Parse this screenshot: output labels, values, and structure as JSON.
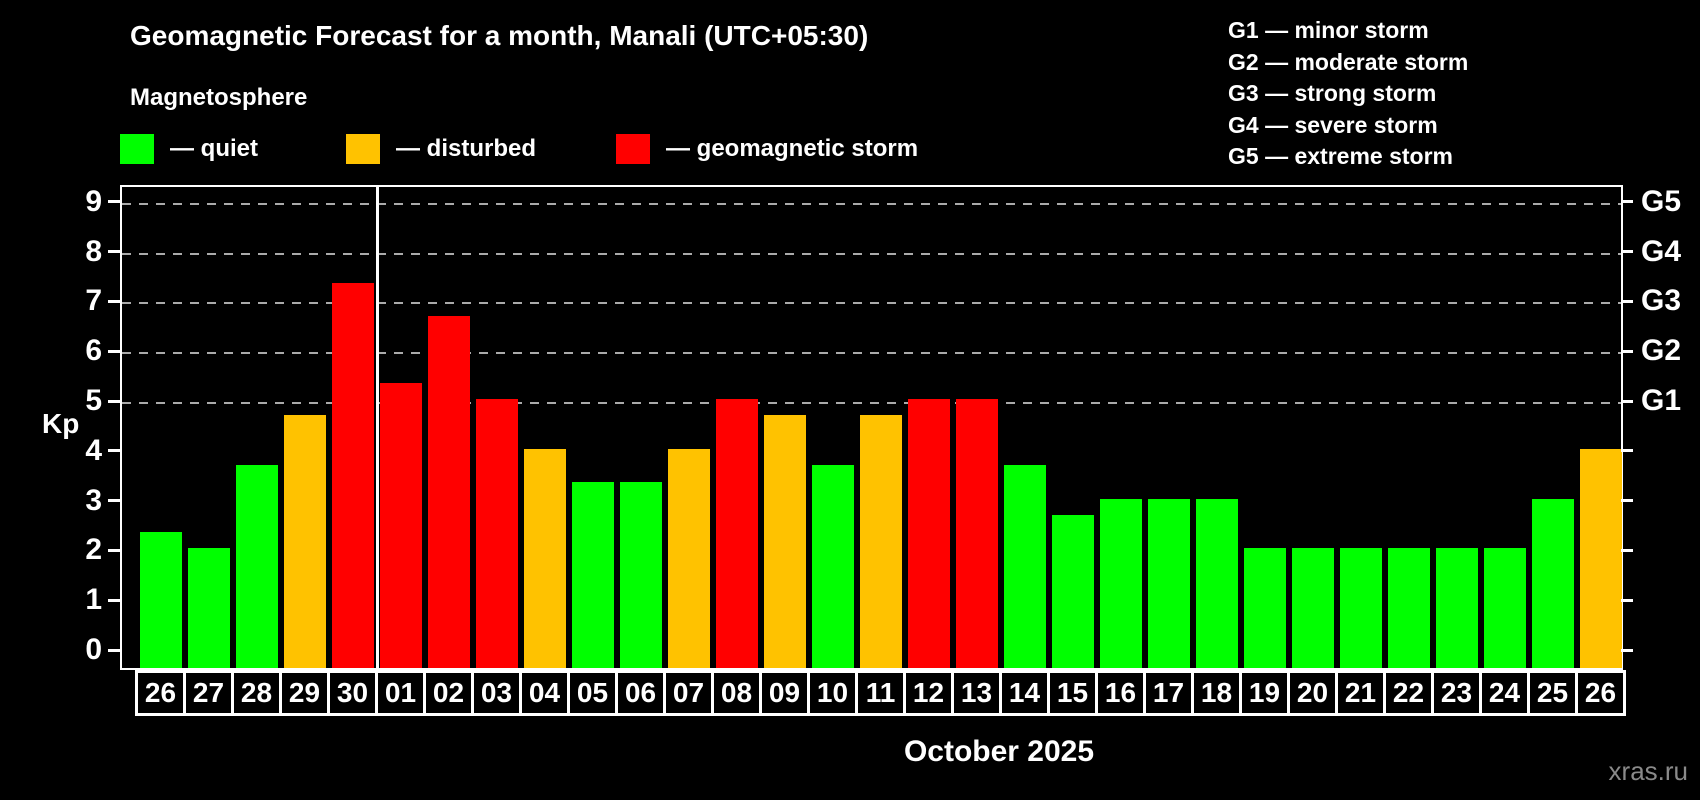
{
  "title": "Geomagnetic Forecast for a month, Manali (UTC+05:30)",
  "subtitle": "Magnetosphere",
  "legend": [
    {
      "label": "— quiet",
      "status": "quiet"
    },
    {
      "label": "— disturbed",
      "status": "disturbed"
    },
    {
      "label": "— geomagnetic storm",
      "status": "storm"
    }
  ],
  "status_colors": {
    "quiet": "#00ff00",
    "disturbed": "#ffc200",
    "storm": "#ff0000"
  },
  "g_legend": [
    "G1 — minor storm",
    "G2 — moderate storm",
    "G3 — strong storm",
    "G4 — severe storm",
    "G5 — extreme storm"
  ],
  "y_axis": {
    "label": "Kp",
    "ticks": [
      0,
      1,
      2,
      3,
      4,
      5,
      6,
      7,
      8,
      9
    ]
  },
  "x_axis": {
    "label": "October 2025"
  },
  "watermark": "xras.ru",
  "chart_data": {
    "type": "bar",
    "title": "Geomagnetic Forecast for a month, Manali (UTC+05:30)",
    "xlabel": "October 2025",
    "ylabel": "Kp",
    "ylim": [
      0,
      9
    ],
    "grid": "dashed horizontal lines at Kp 5-9 only",
    "gridlines_kp": [
      5,
      6,
      7,
      8,
      9
    ],
    "right_axis_labels": {
      "5": "G1",
      "6": "G2",
      "7": "G3",
      "8": "G4",
      "9": "G5"
    },
    "month_separator_after_index": 4,
    "categories": [
      "26",
      "27",
      "28",
      "29",
      "30",
      "01",
      "02",
      "03",
      "04",
      "05",
      "06",
      "07",
      "08",
      "09",
      "10",
      "11",
      "12",
      "13",
      "14",
      "15",
      "16",
      "17",
      "18",
      "19",
      "20",
      "21",
      "22",
      "23",
      "24",
      "25",
      "26"
    ],
    "values": [
      2.33,
      2,
      3.67,
      4.67,
      7.33,
      5.33,
      6.67,
      5,
      4,
      3.33,
      3.33,
      4,
      5,
      4.67,
      3.67,
      4.67,
      5,
      5,
      3.67,
      2.67,
      3,
      3,
      3,
      2,
      2,
      2,
      2,
      2,
      2,
      3,
      4
    ],
    "statuses": [
      "quiet",
      "quiet",
      "quiet",
      "disturbed",
      "storm",
      "storm",
      "storm",
      "storm",
      "disturbed",
      "quiet",
      "quiet",
      "disturbed",
      "storm",
      "disturbed",
      "quiet",
      "disturbed",
      "storm",
      "storm",
      "quiet",
      "quiet",
      "quiet",
      "quiet",
      "quiet",
      "quiet",
      "quiet",
      "quiet",
      "quiet",
      "quiet",
      "quiet",
      "quiet",
      "disturbed"
    ]
  }
}
